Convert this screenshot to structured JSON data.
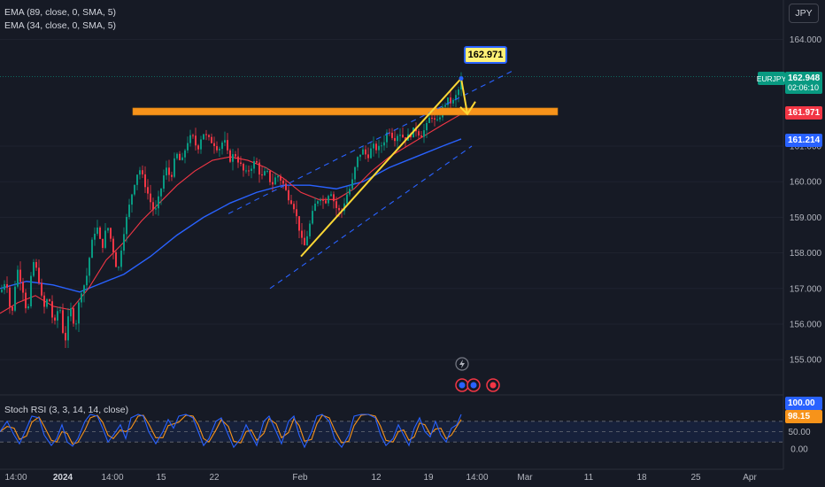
{
  "legend": {
    "ema89": "EMA (89, close, 0, SMA, 5)",
    "ema34": "EMA (34, close, 0, SMA, 5)",
    "stoch": "Stoch RSI (3, 3, 14, 14, close)"
  },
  "currency": "JPY",
  "symbol": "EURJPY",
  "last_price": "162.948",
  "countdown": "02:06:10",
  "resistance_price": "161.971",
  "ema_price": "161.214",
  "callout": "162.971",
  "stoch_values": {
    "k": "100.00",
    "d": "98.15"
  },
  "colors": {
    "up": "#089981",
    "down": "#f23645",
    "ema34": "#f23645",
    "ema89": "#2962ff",
    "resistance": "#f7931a",
    "trend": "#fdd835",
    "channel": "#2962ff",
    "stoch_k": "#2962ff",
    "stoch_d": "#f7931a",
    "background": "#161a25"
  },
  "chart_data": {
    "type": "candlestick",
    "y_axis_labels": [
      "164.000",
      "161.000",
      "160.000",
      "159.000",
      "158.000",
      "157.000",
      "156.000",
      "155.000"
    ],
    "ylim": [
      154.6,
      164.6
    ],
    "x_axis_labels": [
      "14:00",
      "2024",
      "14:00",
      "15",
      "22",
      "Feb",
      "12",
      "19",
      "14:00",
      "Mar",
      "11",
      "18",
      "25",
      "Apr"
    ],
    "price_path": [
      [
        0,
        156.9
      ],
      [
        6,
        157.3
      ],
      [
        12,
        156.1
      ],
      [
        18,
        157.6
      ],
      [
        24,
        157.1
      ],
      [
        30,
        156.2
      ],
      [
        36,
        157.8
      ],
      [
        42,
        157.4
      ],
      [
        48,
        156.4
      ],
      [
        54,
        156.8
      ],
      [
        60,
        155.9
      ],
      [
        66,
        156.6
      ],
      [
        72,
        155.4
      ],
      [
        78,
        156.5
      ],
      [
        84,
        155.9
      ],
      [
        90,
        156.9
      ],
      [
        96,
        157.2
      ],
      [
        102,
        158.2
      ],
      [
        108,
        158.8
      ],
      [
        114,
        158.1
      ],
      [
        120,
        158.8
      ],
      [
        126,
        158.2
      ],
      [
        132,
        157.4
      ],
      [
        138,
        158.5
      ],
      [
        144,
        159.2
      ],
      [
        150,
        159.9
      ],
      [
        156,
        160.4
      ],
      [
        162,
        160.0
      ],
      [
        168,
        159.5
      ],
      [
        174,
        159.1
      ],
      [
        180,
        159.7
      ],
      [
        186,
        160.4
      ],
      [
        192,
        160.1
      ],
      [
        198,
        160.8
      ],
      [
        204,
        160.5
      ],
      [
        210,
        161.1
      ],
      [
        216,
        161.3
      ],
      [
        222,
        160.9
      ],
      [
        228,
        161.4
      ],
      [
        234,
        161.2
      ],
      [
        240,
        161.1
      ],
      [
        246,
        160.9
      ],
      [
        252,
        161.2
      ],
      [
        258,
        160.6
      ],
      [
        264,
        160.8
      ],
      [
        270,
        160.5
      ],
      [
        276,
        160.2
      ],
      [
        282,
        160.4
      ],
      [
        288,
        160.6
      ],
      [
        294,
        160.1
      ],
      [
        300,
        160.3
      ],
      [
        306,
        159.9
      ],
      [
        312,
        160.2
      ],
      [
        318,
        160.0
      ],
      [
        324,
        159.6
      ],
      [
        330,
        159.4
      ],
      [
        336,
        158.8
      ],
      [
        342,
        158.1
      ],
      [
        348,
        158.7
      ],
      [
        354,
        159.3
      ],
      [
        360,
        159.6
      ],
      [
        366,
        159.4
      ],
      [
        372,
        159.8
      ],
      [
        378,
        159.3
      ],
      [
        384,
        159.1
      ],
      [
        390,
        159.6
      ],
      [
        396,
        159.9
      ],
      [
        402,
        160.6
      ],
      [
        408,
        160.9
      ],
      [
        414,
        160.7
      ],
      [
        420,
        161.0
      ],
      [
        426,
        160.9
      ],
      [
        432,
        161.1
      ],
      [
        438,
        161.5
      ],
      [
        444,
        161.2
      ],
      [
        450,
        161.4
      ],
      [
        456,
        161.2
      ],
      [
        462,
        161.3
      ],
      [
        468,
        161.5
      ],
      [
        474,
        161.3
      ],
      [
        480,
        161.5
      ],
      [
        486,
        161.9
      ],
      [
        492,
        161.6
      ],
      [
        498,
        162.0
      ],
      [
        504,
        162.3
      ],
      [
        510,
        162.2
      ],
      [
        516,
        162.5
      ],
      [
        521,
        162.9
      ]
    ],
    "ema34_path": [
      [
        0,
        156.3
      ],
      [
        20,
        156.6
      ],
      [
        40,
        156.8
      ],
      [
        60,
        156.5
      ],
      [
        80,
        156.4
      ],
      [
        100,
        157.0
      ],
      [
        120,
        157.8
      ],
      [
        140,
        158.3
      ],
      [
        160,
        158.9
      ],
      [
        180,
        159.4
      ],
      [
        200,
        159.9
      ],
      [
        220,
        160.3
      ],
      [
        240,
        160.6
      ],
      [
        260,
        160.7
      ],
      [
        280,
        160.6
      ],
      [
        300,
        160.4
      ],
      [
        320,
        160.1
      ],
      [
        340,
        159.7
      ],
      [
        360,
        159.5
      ],
      [
        380,
        159.5
      ],
      [
        400,
        159.8
      ],
      [
        420,
        160.3
      ],
      [
        440,
        160.7
      ],
      [
        460,
        161.0
      ],
      [
        480,
        161.3
      ],
      [
        500,
        161.6
      ],
      [
        521,
        161.9
      ]
    ],
    "ema89_path": [
      [
        0,
        157.0
      ],
      [
        30,
        157.2
      ],
      [
        60,
        157.1
      ],
      [
        90,
        156.9
      ],
      [
        110,
        157.1
      ],
      [
        140,
        157.4
      ],
      [
        170,
        157.9
      ],
      [
        200,
        158.5
      ],
      [
        230,
        159.0
      ],
      [
        260,
        159.4
      ],
      [
        290,
        159.7
      ],
      [
        320,
        159.9
      ],
      [
        350,
        159.9
      ],
      [
        380,
        159.8
      ],
      [
        410,
        160.0
      ],
      [
        440,
        160.4
      ],
      [
        470,
        160.7
      ],
      [
        500,
        161.0
      ],
      [
        521,
        161.2
      ]
    ],
    "resistance_level": 161.971,
    "resistance_x_range": [
      150,
      630
    ],
    "trendline": [
      [
        340,
        157.9
      ],
      [
        521,
        162.9
      ]
    ],
    "channel_upper": [
      [
        258,
        159.1
      ],
      [
        578,
        163.1
      ]
    ],
    "channel_lower": [
      [
        305,
        157.0
      ],
      [
        533,
        161.0
      ]
    ],
    "projection": [
      [
        521,
        162.9
      ],
      [
        528,
        161.9
      ]
    ],
    "stoch": {
      "ylim": [
        0,
        100
      ],
      "y_axis_labels": [
        "100.00",
        "50.00",
        "0.00"
      ],
      "levels": [
        80,
        50,
        20
      ],
      "k": [
        [
          0,
          50
        ],
        [
          8,
          80
        ],
        [
          16,
          40
        ],
        [
          22,
          15
        ],
        [
          30,
          60
        ],
        [
          36,
          95
        ],
        [
          44,
          90
        ],
        [
          50,
          40
        ],
        [
          58,
          10
        ],
        [
          64,
          30
        ],
        [
          70,
          70
        ],
        [
          76,
          20
        ],
        [
          82,
          8
        ],
        [
          88,
          30
        ],
        [
          96,
          80
        ],
        [
          102,
          100
        ],
        [
          110,
          95
        ],
        [
          116,
          60
        ],
        [
          122,
          20
        ],
        [
          128,
          40
        ],
        [
          136,
          70
        ],
        [
          142,
          30
        ],
        [
          148,
          90
        ],
        [
          156,
          100
        ],
        [
          162,
          95
        ],
        [
          168,
          50
        ],
        [
          176,
          15
        ],
        [
          184,
          50
        ],
        [
          190,
          85
        ],
        [
          196,
          60
        ],
        [
          202,
          95
        ],
        [
          210,
          100
        ],
        [
          218,
          90
        ],
        [
          224,
          50
        ],
        [
          230,
          10
        ],
        [
          236,
          30
        ],
        [
          244,
          80
        ],
        [
          250,
          90
        ],
        [
          258,
          40
        ],
        [
          264,
          5
        ],
        [
          272,
          30
        ],
        [
          278,
          70
        ],
        [
          284,
          40
        ],
        [
          290,
          10
        ],
        [
          298,
          80
        ],
        [
          304,
          95
        ],
        [
          312,
          50
        ],
        [
          318,
          15
        ],
        [
          326,
          80
        ],
        [
          332,
          95
        ],
        [
          338,
          40
        ],
        [
          344,
          5
        ],
        [
          352,
          50
        ],
        [
          358,
          95
        ],
        [
          364,
          100
        ],
        [
          372,
          80
        ],
        [
          378,
          30
        ],
        [
          386,
          5
        ],
        [
          394,
          40
        ],
        [
          400,
          95
        ],
        [
          408,
          100
        ],
        [
          416,
          100
        ],
        [
          424,
          90
        ],
        [
          430,
          40
        ],
        [
          436,
          10
        ],
        [
          444,
          30
        ],
        [
          450,
          70
        ],
        [
          456,
          40
        ],
        [
          462,
          10
        ],
        [
          468,
          60
        ],
        [
          474,
          90
        ],
        [
          480,
          50
        ],
        [
          486,
          35
        ],
        [
          492,
          80
        ],
        [
          498,
          40
        ],
        [
          504,
          20
        ],
        [
          510,
          60
        ],
        [
          516,
          70
        ],
        [
          521,
          100
        ]
      ]
    }
  }
}
